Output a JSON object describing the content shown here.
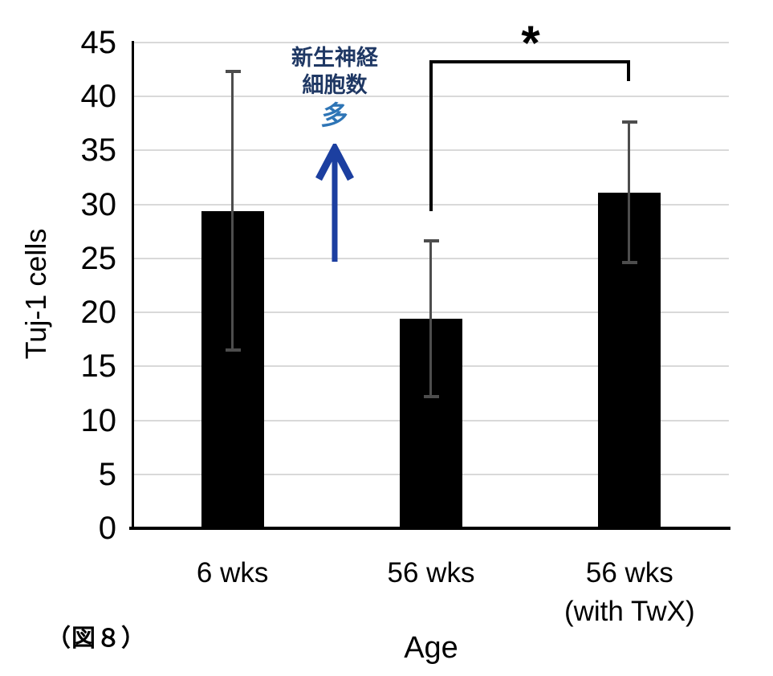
{
  "figure_label": "（図８）",
  "chart_data": {
    "type": "bar",
    "title": "",
    "xlabel": "Age",
    "ylabel": "Tuj-1 cells",
    "categories": [
      [
        "6 wks"
      ],
      [
        "56 wks"
      ],
      [
        "56 wks",
        "(with TwX)"
      ]
    ],
    "values": [
      29.4,
      19.4,
      31.1
    ],
    "errors": [
      12.9,
      7.2,
      6.5
    ],
    "ylim": [
      0,
      45
    ],
    "yticks": [
      0,
      5,
      10,
      15,
      20,
      25,
      30,
      35,
      40,
      45
    ],
    "grid": true,
    "legend_position": "none",
    "bar_color": "#000000",
    "error_color": "#4D4D4D",
    "grid_color": "#D9D9D9",
    "axis_color": "#000000",
    "significance": {
      "label": "*",
      "between": [
        "56 wks",
        "56 wks (with TwX)"
      ]
    }
  },
  "annotation": {
    "lines": [
      "新生神経",
      "細胞数"
    ],
    "emphasis": "多",
    "text_color": "#1F3864",
    "emphasis_color": "#2E75B6",
    "arrow_icon_color": "#1C3FA0"
  }
}
